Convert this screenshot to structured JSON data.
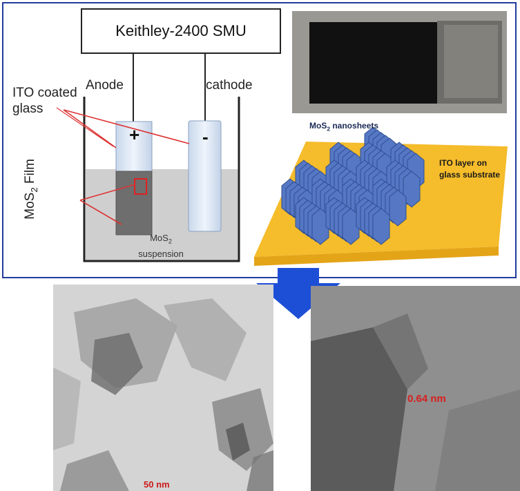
{
  "setup": {
    "smu_label": "Keithley-2400 SMU",
    "anode_label": "Anode",
    "cathode_label": "cathode",
    "ito_label_line1": "ITO coated",
    "ito_label_line2": "glass",
    "film_label_main": "MoS",
    "film_label_sub": "2",
    "film_label_tail": " Film",
    "plus_sign": "+",
    "minus_sign": "-",
    "suspension_main": "MoS",
    "suspension_sub": "2",
    "suspension_line2": "suspension"
  },
  "schematic": {
    "nanosheets_main": "MoS",
    "nanosheets_sub": "2",
    "nanosheets_tail": " nanosheets",
    "ito_layer_line1": "ITO layer on",
    "ito_layer_line2": "glass substrate"
  },
  "tem": {
    "scale_bar_label": "50 nm",
    "lattice_spacing_label": "0.64 nm"
  },
  "colors": {
    "frame_blue": "#1f3c9c",
    "arrow_blue": "#1d4fd6",
    "substrate_yellow": "#f5bc2b",
    "sheet_blue": "#5577c4",
    "annotation_red": "#d81e1e"
  }
}
